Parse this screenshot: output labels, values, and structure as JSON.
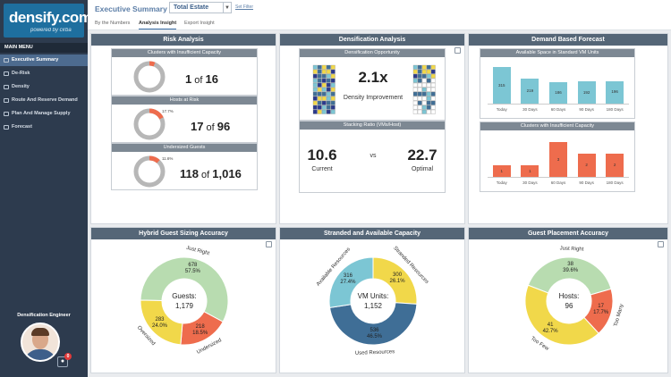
{
  "colors": {
    "sidebar": "#2d3b4e",
    "header": "#556677",
    "green": "#b8dcb0",
    "orange": "#ee6c4d",
    "yellow": "#f1d84a",
    "teal": "#7cc6d4",
    "blue": "#3f6e96",
    "gray": "#b7b7b7"
  },
  "logo": {
    "main": "densify.com",
    "sub": "powered by cirba"
  },
  "sidebar": {
    "menu_header": "MAIN MENU",
    "items": [
      {
        "label": "Executive Summary",
        "icon": "summary-icon"
      },
      {
        "label": "De-Risk",
        "icon": "derisk-icon"
      },
      {
        "label": "Density",
        "icon": "density-icon"
      },
      {
        "label": "Route And Reserve Demand",
        "icon": "route-icon"
      },
      {
        "label": "Plan And Manage Supply",
        "icon": "plan-icon"
      },
      {
        "label": "Forecast",
        "icon": "forecast-icon"
      }
    ],
    "user_title": "Densification Engineer",
    "notification_count": "0"
  },
  "topbar": {
    "title": "Executive Summary for",
    "scope": "Total Estate",
    "set_filter": "Set Filter",
    "tabs": [
      "By the Numbers",
      "Analysis Insight",
      "Export Insight"
    ]
  },
  "risk": {
    "title": "Risk Analysis",
    "rows": [
      {
        "header": "Clusters with Insufficient Capacity",
        "pct_label": "",
        "pct": 0.06,
        "num": "1",
        "of": "of",
        "den": "16"
      },
      {
        "header": "Hosts at Risk",
        "pct_label": "17.7%",
        "pct": 0.177,
        "num": "17",
        "of": "of",
        "den": "96"
      },
      {
        "header": "Undersized Guests",
        "pct_label": "11.6%",
        "pct": 0.116,
        "num": "118",
        "of": "of",
        "den": "1,016"
      }
    ]
  },
  "densification": {
    "title": "Densification Analysis",
    "opportunity_header": "Densification Opportunity",
    "ratio": "2.1x",
    "improvement_label": "Density Improvement",
    "stacking_header": "Stacking Ratio (VMs/Host)",
    "current_value": "10.6",
    "current_label": "Current",
    "vs": "vs",
    "optimal_value": "22.7",
    "optimal_label": "Optimal"
  },
  "forecast": {
    "title": "Demand Based Forecast",
    "charts": [
      {
        "header": "Available Space in Standard VM Units",
        "type": "bar",
        "color": "#7cc6d4",
        "categories": [
          "Today",
          "30 Days",
          "60 Days",
          "90 Days",
          "180 Days"
        ],
        "values": [
          315,
          219,
          186,
          192,
          196
        ],
        "value_labels": [
          "315",
          "219",
          "186",
          "192",
          "196"
        ],
        "ylim": [
          0,
          340
        ]
      },
      {
        "header": "Clusters with Insufficient Capacity",
        "type": "bar",
        "color": "#ee6c4d",
        "categories": [
          "Today",
          "30 Days",
          "60 Days",
          "90 Days",
          "180 Days"
        ],
        "values": [
          1,
          1,
          3,
          2,
          2
        ],
        "value_labels": [
          "1",
          "1",
          "3",
          "2",
          "2"
        ],
        "ylim": [
          0,
          3.4
        ]
      }
    ]
  },
  "hybrid": {
    "title": "Hybrid Guest Sizing Accuracy",
    "center_label": "Guests:",
    "center_value": "1,179",
    "segments": [
      {
        "name": "Just Right",
        "value": "678",
        "pct": "57.5%",
        "frac": 0.575,
        "color": "#b8dcb0"
      },
      {
        "name": "Undersized",
        "value": "218",
        "pct": "18.5%",
        "frac": 0.185,
        "color": "#ee6c4d"
      },
      {
        "name": "Oversized",
        "value": "283",
        "pct": "24.0%",
        "frac": 0.24,
        "color": "#f1d84a"
      }
    ]
  },
  "stranded": {
    "title": "Stranded and Available Capacity",
    "center_label": "VM Units:",
    "center_value": "1,152",
    "segments": [
      {
        "name": "Stranded Resources",
        "value": "300",
        "pct": "26.1%",
        "frac": 0.261,
        "color": "#f1d84a"
      },
      {
        "name": "Used Resources",
        "value": "536",
        "pct": "46.5%",
        "frac": 0.465,
        "color": "#3f6e96"
      },
      {
        "name": "Available Resources",
        "value": "316",
        "pct": "27.4%",
        "frac": 0.274,
        "color": "#7cc6d4"
      }
    ]
  },
  "placement": {
    "title": "Guest Placement Accuracy",
    "center_label": "Hosts:",
    "center_value": "96",
    "segments": [
      {
        "name": "Just Right",
        "value": "38",
        "pct": "39.6%",
        "frac": 0.396,
        "color": "#b8dcb0"
      },
      {
        "name": "Too Many",
        "value": "17",
        "pct": "17.7%",
        "frac": 0.177,
        "color": "#ee6c4d"
      },
      {
        "name": "Too Few",
        "value": "41",
        "pct": "42.7%",
        "frac": 0.427,
        "color": "#f1d84a"
      }
    ]
  }
}
